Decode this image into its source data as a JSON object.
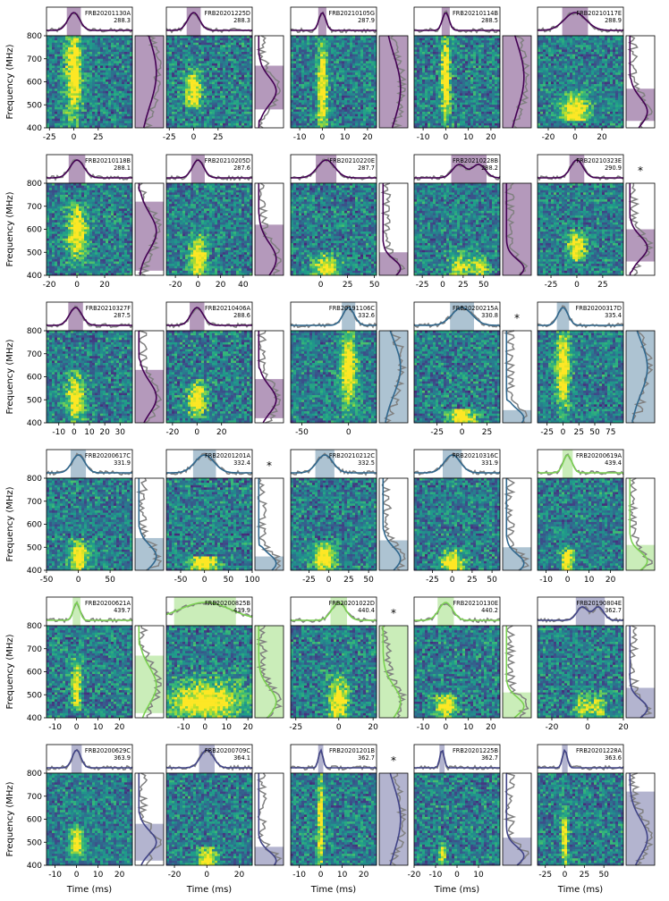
{
  "figure": {
    "ylabel": "Frequency (MHz)",
    "xlabel": "Time (ms)",
    "freq_ticks": [
      400,
      500,
      600,
      700,
      800
    ],
    "colors": {
      "c1": "#440154",
      "c2": "#31688e",
      "c3": "#7ad151",
      "c4": "#414487",
      "data_gray": "#808080",
      "frame": "#000000"
    }
  },
  "chart_data": {
    "type": "heatmap",
    "ylabel": "Frequency (MHz)",
    "xlabel": "Time (ms)",
    "ylim": [
      400,
      800
    ],
    "panels": [
      {
        "name": "FRB20201130A",
        "dm": "288.3",
        "group": "c1",
        "xlim": [
          -28,
          60
        ],
        "xticks": [
          -25,
          0,
          25
        ],
        "center": 0,
        "width": 6,
        "band": [
          400,
          800
        ],
        "fpeak": 640,
        "fwidth": 150,
        "twopeak": false,
        "star": false
      },
      {
        "name": "FRB20201225D",
        "dm": "288.3",
        "group": "c1",
        "xlim": [
          -28,
          60
        ],
        "xticks": [
          -25,
          0,
          25
        ],
        "center": 0,
        "width": 6,
        "band": [
          480,
          670
        ],
        "fpeak": 560,
        "fwidth": 60,
        "twopeak": false,
        "star": false
      },
      {
        "name": "FRB20210105G",
        "dm": "287.9",
        "group": "c1",
        "xlim": [
          -14,
          24
        ],
        "xticks": [
          -10,
          0,
          10,
          20
        ],
        "center": 0,
        "width": 1.5,
        "band": [
          400,
          800
        ],
        "fpeak": 570,
        "fwidth": 150,
        "twopeak": false,
        "star": false
      },
      {
        "name": "FRB20210114B",
        "dm": "288.5",
        "group": "c1",
        "xlim": [
          -14,
          24
        ],
        "xticks": [
          -10,
          0,
          10,
          20
        ],
        "center": 0,
        "width": 1.5,
        "band": [
          400,
          800
        ],
        "fpeak": 620,
        "fwidth": 150,
        "twopeak": false,
        "star": false
      },
      {
        "name": "FRB20210117E",
        "dm": "288.9",
        "group": "c1",
        "xlim": [
          -28,
          36
        ],
        "xticks": [
          -20,
          0,
          20
        ],
        "center": 0,
        "width": 8,
        "band": [
          430,
          570
        ],
        "fpeak": 470,
        "fwidth": 60,
        "twopeak": false,
        "star": false
      },
      {
        "name": "FRB20210118B",
        "dm": "288.1",
        "group": "c1",
        "xlim": [
          -22,
          40
        ],
        "xticks": [
          -20,
          0,
          20
        ],
        "center": 0,
        "width": 5,
        "band": [
          420,
          720
        ],
        "fpeak": 590,
        "fwidth": 80,
        "twopeak": false,
        "star": false
      },
      {
        "name": "FRB20210205D",
        "dm": "287.6",
        "group": "c1",
        "xlim": [
          -28,
          48
        ],
        "xticks": [
          -20,
          0,
          20,
          40
        ],
        "center": 0,
        "width": 5,
        "band": [
          400,
          620
        ],
        "fpeak": 470,
        "fwidth": 70,
        "twopeak": false,
        "star": false
      },
      {
        "name": "FRB20210220E",
        "dm": "287.7",
        "group": "c1",
        "xlim": [
          -28,
          52
        ],
        "xticks": [
          0,
          25,
          50
        ],
        "center": 5,
        "width": 8,
        "band": [
          400,
          500
        ],
        "fpeak": 430,
        "fwidth": 40,
        "twopeak": false,
        "star": false
      },
      {
        "name": "FRB20210228B",
        "dm": "288.2",
        "group": "c1",
        "xlim": [
          -35,
          70
        ],
        "xticks": [
          -25,
          0,
          25,
          50
        ],
        "center": 20,
        "width": 8,
        "band": [
          400,
          800
        ],
        "fpeak": 430,
        "fwidth": 40,
        "twopeak": true,
        "star": false
      },
      {
        "name": "FRB20210323E",
        "dm": "290.9",
        "group": "c1",
        "xlim": [
          -38,
          45
        ],
        "xticks": [
          -25,
          0,
          25
        ],
        "center": 0,
        "width": 6,
        "band": [
          460,
          600
        ],
        "fpeak": 520,
        "fwidth": 50,
        "twopeak": false,
        "star": true
      },
      {
        "name": "FRB20210327F",
        "dm": "287.5",
        "group": "c1",
        "xlim": [
          -18,
          38
        ],
        "xticks": [
          -10,
          0,
          10,
          20,
          30
        ],
        "center": 1,
        "width": 4,
        "band": [
          400,
          630
        ],
        "fpeak": 510,
        "fwidth": 70,
        "twopeak": false,
        "star": false
      },
      {
        "name": "FRB20210406A",
        "dm": "288.6",
        "group": "c1",
        "xlim": [
          -25,
          45
        ],
        "xticks": [
          -20,
          0,
          20
        ],
        "center": 0,
        "width": 5,
        "band": [
          420,
          590
        ],
        "fpeak": 500,
        "fwidth": 60,
        "twopeak": false,
        "star": false
      },
      {
        "name": "FRB20191106C",
        "dm": "332.6",
        "group": "c2",
        "xlim": [
          -62,
          30
        ],
        "xticks": [
          -50,
          0
        ],
        "center": 0,
        "width": 6,
        "band": [
          400,
          800
        ],
        "fpeak": 640,
        "fwidth": 120,
        "twopeak": false,
        "star": false
      },
      {
        "name": "FRB20200215A",
        "dm": "330.8",
        "group": "c2",
        "xlim": [
          -48,
          38
        ],
        "xticks": [
          -25,
          0,
          25
        ],
        "center": 0,
        "width": 10,
        "band": [
          400,
          455
        ],
        "fpeak": 420,
        "fwidth": 40,
        "twopeak": false,
        "star": true
      },
      {
        "name": "FRB20200317D",
        "dm": "335.4",
        "group": "c2",
        "xlim": [
          -40,
          95
        ],
        "xticks": [
          -25,
          0,
          25,
          50,
          75
        ],
        "center": 0,
        "width": 8,
        "band": [
          400,
          800
        ],
        "fpeak": 640,
        "fwidth": 120,
        "twopeak": false,
        "star": false
      },
      {
        "name": "FRB20200617C",
        "dm": "331.9",
        "group": "c2",
        "xlim": [
          -50,
          85
        ],
        "xticks": [
          -50,
          0,
          50
        ],
        "center": 0,
        "width": 10,
        "band": [
          400,
          540
        ],
        "fpeak": 460,
        "fwidth": 50,
        "twopeak": false,
        "star": false
      },
      {
        "name": "FRB20201201A",
        "dm": "332.4",
        "group": "c2",
        "xlim": [
          -80,
          100
        ],
        "xticks": [
          -50,
          0,
          50,
          100
        ],
        "center": 0,
        "width": 20,
        "band": [
          400,
          460
        ],
        "fpeak": 430,
        "fwidth": 40,
        "twopeak": false,
        "star": true
      },
      {
        "name": "FRB20210212C",
        "dm": "332.5",
        "group": "c2",
        "xlim": [
          -48,
          60
        ],
        "xticks": [
          -25,
          0,
          25,
          50
        ],
        "center": -5,
        "width": 10,
        "band": [
          400,
          530
        ],
        "fpeak": 450,
        "fwidth": 50,
        "twopeak": false,
        "star": false
      },
      {
        "name": "FRB20210316C",
        "dm": "331.9",
        "group": "c2",
        "xlim": [
          -48,
          60
        ],
        "xticks": [
          -25,
          0,
          25,
          50
        ],
        "center": 0,
        "width": 10,
        "band": [
          400,
          500
        ],
        "fpeak": 430,
        "fwidth": 40,
        "twopeak": false,
        "star": false
      },
      {
        "name": "FRB20200619A",
        "dm": "439.4",
        "group": "c3",
        "xlim": [
          -14,
          26
        ],
        "xticks": [
          -10,
          0,
          10,
          20
        ],
        "center": 0,
        "width": 2,
        "band": [
          400,
          510
        ],
        "fpeak": 440,
        "fwidth": 40,
        "twopeak": false,
        "star": false
      },
      {
        "name": "FRB20200621A",
        "dm": "439.7",
        "group": "c3",
        "xlim": [
          -14,
          26
        ],
        "xticks": [
          -10,
          0,
          10,
          20
        ],
        "center": 0,
        "width": 1.5,
        "band": [
          420,
          670
        ],
        "fpeak": 540,
        "fwidth": 80,
        "twopeak": false,
        "star": false
      },
      {
        "name": "FRB20200825B",
        "dm": "439.9",
        "group": "c3",
        "xlim": [
          -18,
          22
        ],
        "xticks": [
          -10,
          0,
          10,
          20
        ],
        "center": 0,
        "width": 12,
        "band": [
          400,
          800
        ],
        "fpeak": 470,
        "fwidth": 60,
        "twopeak": false,
        "star": false
      },
      {
        "name": "FRB20201022D",
        "dm": "440.4",
        "group": "c3",
        "xlim": [
          -28,
          22
        ],
        "xticks": [
          -25,
          0,
          20
        ],
        "center": 0,
        "width": 4,
        "band": [
          400,
          800
        ],
        "fpeak": 470,
        "fwidth": 70,
        "twopeak": false,
        "star": true
      },
      {
        "name": "FRB20210130E",
        "dm": "440.2",
        "group": "c3",
        "xlim": [
          -14,
          24
        ],
        "xticks": [
          -10,
          0,
          10,
          20
        ],
        "center": 0,
        "width": 3,
        "band": [
          400,
          510
        ],
        "fpeak": 450,
        "fwidth": 40,
        "twopeak": false,
        "star": false
      },
      {
        "name": "FRB20190804E",
        "dm": "362.7",
        "group": "c4",
        "xlim": [
          -28,
          20
        ],
        "xticks": [
          -20,
          0,
          20
        ],
        "center": -3,
        "width": 3,
        "band": [
          400,
          530
        ],
        "fpeak": 440,
        "fwidth": 40,
        "twopeak": true,
        "star": false
      },
      {
        "name": "FRB20200629C",
        "dm": "363.9",
        "group": "c4",
        "xlim": [
          -14,
          26
        ],
        "xticks": [
          -10,
          0,
          10,
          20
        ],
        "center": 0,
        "width": 2,
        "band": [
          420,
          580
        ],
        "fpeak": 500,
        "fwidth": 50,
        "twopeak": false,
        "star": false
      },
      {
        "name": "FRB20200709C",
        "dm": "364.1",
        "group": "c4",
        "xlim": [
          -25,
          28
        ],
        "xticks": [
          -20,
          0,
          20
        ],
        "center": 0,
        "width": 4,
        "band": [
          400,
          480
        ],
        "fpeak": 420,
        "fwidth": 40,
        "twopeak": false,
        "star": false
      },
      {
        "name": "FRB20201201B",
        "dm": "362.7",
        "group": "c4",
        "xlim": [
          -14,
          26
        ],
        "xticks": [
          -10,
          0,
          10,
          20
        ],
        "center": 0,
        "width": 1,
        "band": [
          400,
          800
        ],
        "fpeak": 600,
        "fwidth": 150,
        "twopeak": false,
        "star": true
      },
      {
        "name": "FRB20201225B",
        "dm": "362.7",
        "group": "c4",
        "xlim": [
          -20,
          20
        ],
        "xticks": [
          -20,
          -10,
          0,
          10
        ],
        "center": -7,
        "width": 1,
        "band": [
          400,
          520
        ],
        "fpeak": 440,
        "fwidth": 40,
        "twopeak": false,
        "star": false
      },
      {
        "name": "FRB20201228A",
        "dm": "363.6",
        "group": "c4",
        "xlim": [
          -35,
          75
        ],
        "xticks": [
          -25,
          0,
          25,
          50
        ],
        "center": 0,
        "width": 3,
        "band": [
          400,
          720
        ],
        "fpeak": 520,
        "fwidth": 80,
        "twopeak": false,
        "star": false
      }
    ]
  }
}
